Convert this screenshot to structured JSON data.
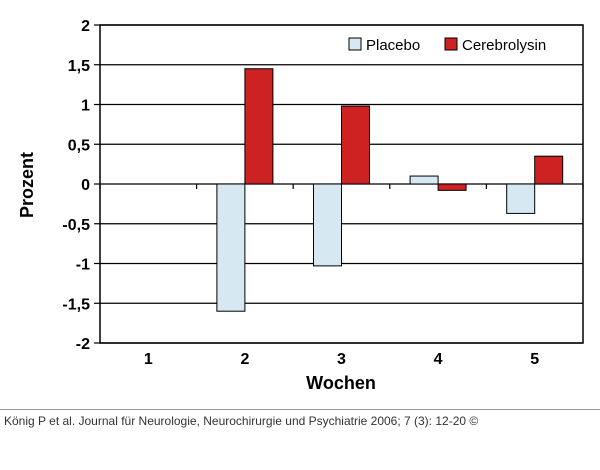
{
  "chart_data": {
    "type": "bar",
    "categories": [
      "1",
      "2",
      "3",
      "4",
      "5"
    ],
    "series": [
      {
        "name": "Placebo",
        "values": [
          0,
          -1.6,
          -1.03,
          0.1,
          -0.37
        ],
        "color": "#d6e8f2"
      },
      {
        "name": "Cerebrolysin",
        "values": [
          0,
          1.45,
          0.98,
          -0.08,
          0.35
        ],
        "color": "#cc2222"
      }
    ],
    "ylim": [
      -2,
      2
    ],
    "yticks": [
      2,
      1.5,
      1,
      0.5,
      0,
      -0.5,
      -1,
      -1.5,
      -2
    ],
    "ytick_labels": [
      "2",
      "1,5",
      "1",
      "0,5",
      "0",
      "-0,5",
      "-1",
      "-1,5",
      "-2"
    ],
    "xlabel": "Wochen",
    "ylabel": "Prozent",
    "grid": true,
    "legend_position": "top-right"
  },
  "caption": "König P et al. Journal für Neurologie, Neurochirurgie und Psychiatrie 2006; 7 (3): 12-20 ©"
}
